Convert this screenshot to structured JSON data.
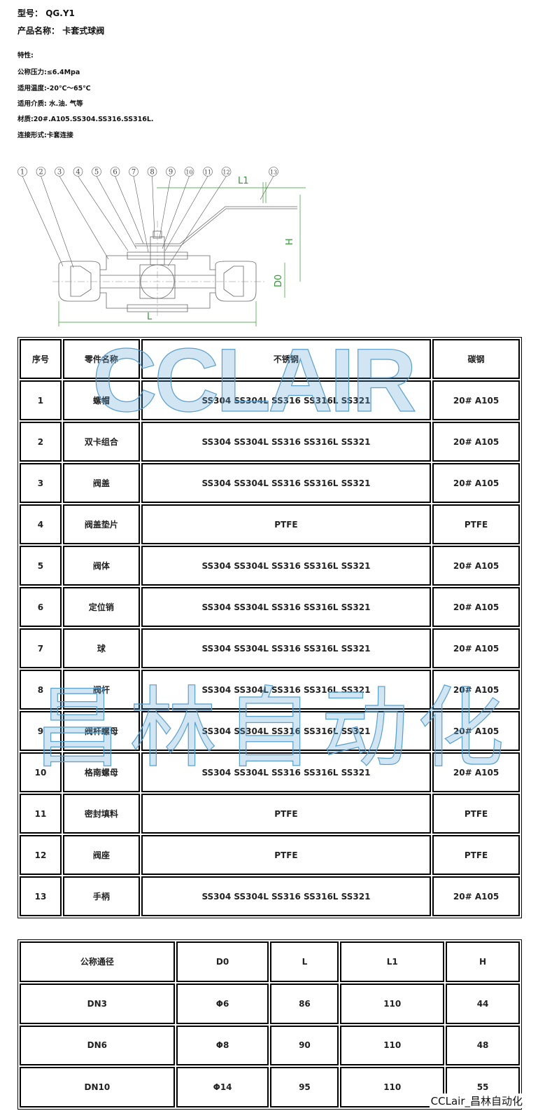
{
  "header": {
    "model_label": "型号：",
    "model": "QG.Y1",
    "name_label": "产品名称：",
    "name": "卡套式球阀"
  },
  "specs": [
    "特性:",
    "公称压力:≤6.4Mpa",
    "适用温度:-20℃～65℃",
    "适用介质: 水.油. 气等",
    "材质:20#.A105.SS304.SS316.SS316L.",
    "连接形式:卡套连接"
  ],
  "diagram": {
    "callouts": [
      "1",
      "2",
      "3",
      "4",
      "5",
      "6",
      "7",
      "8",
      "9",
      "10",
      "11",
      "12",
      "13"
    ],
    "dims": {
      "L1": "L1",
      "H": "H",
      "D0": "D0",
      "L": "L"
    },
    "dim_color": "#2e9a2e"
  },
  "parts_table": {
    "headers": [
      "序号",
      "零件名称",
      "不锈钢",
      "碳钢"
    ],
    "rows": [
      [
        "1",
        "螺帽",
        "SS304  SS304L SS316 SS316L SS321",
        "20# A105"
      ],
      [
        "2",
        "双卡组合",
        "SS304  SS304L SS316 SS316L SS321",
        "20# A105"
      ],
      [
        "3",
        "阀盖",
        "SS304  SS304L SS316 SS316L SS321",
        "20# A105"
      ],
      [
        "4",
        "阀盖垫片",
        "PTFE",
        "PTFE"
      ],
      [
        "5",
        "阀体",
        "SS304  SS304L SS316 SS316L SS321",
        "20# A105"
      ],
      [
        "6",
        "定位销",
        "SS304  SS304L SS316 SS316L SS321",
        "20# A105"
      ],
      [
        "7",
        "球",
        "SS304  SS304L SS316 SS316L SS321",
        "20# A105"
      ],
      [
        "8",
        "阀杆",
        "SS304  SS304L SS316 SS316L SS321",
        "20# A105"
      ],
      [
        "9",
        "阀杆螺母",
        "SS304  SS304L SS316 SS316L SS321",
        "20# A105"
      ],
      [
        "10",
        "格南螺母",
        "SS304  SS304L SS316 SS316L SS321",
        "20# A105"
      ],
      [
        "11",
        "密封填料",
        "PTFE",
        "PTFE"
      ],
      [
        "12",
        "阀座",
        "PTFE",
        "PTFE"
      ],
      [
        "13",
        "手柄",
        "SS304  SS304L SS316 SS316L SS321",
        "20# A105"
      ]
    ]
  },
  "dims_table": {
    "headers": [
      "公称通径",
      "D0",
      "L",
      "L1",
      "H"
    ],
    "rows": [
      [
        "DN3",
        "Φ6",
        "86",
        "110",
        "44"
      ],
      [
        "DN6",
        "Φ8",
        "90",
        "110",
        "48"
      ],
      [
        "DN10",
        "Φ14",
        "95",
        "110",
        "55"
      ]
    ]
  },
  "watermarks": {
    "top": "CCLAIR",
    "middle": "昌林自动化",
    "color": "#5aa0d0"
  },
  "footer": "CCLair_昌林自动化"
}
